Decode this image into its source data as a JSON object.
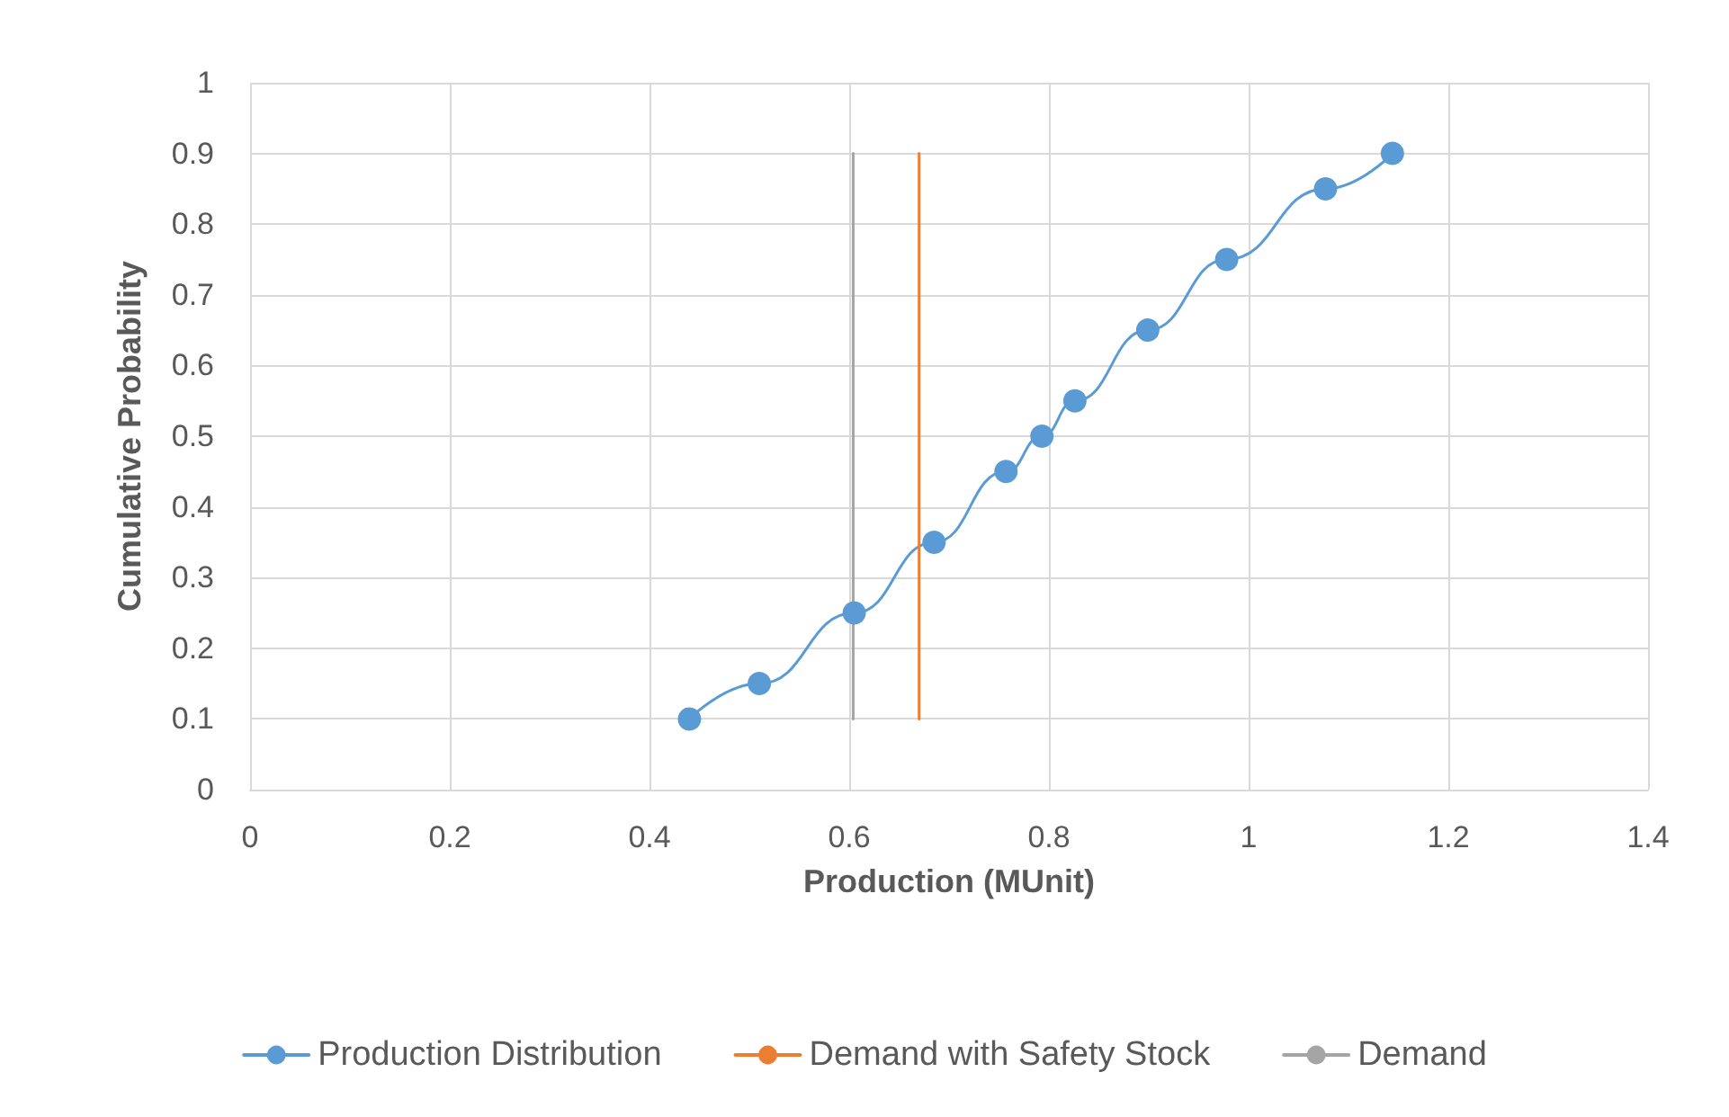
{
  "chart_data": {
    "type": "line",
    "xlabel": "Production (MUnit)",
    "ylabel": "Cumulative Probability",
    "series": [
      {
        "name": "Production Distribution",
        "color": "#5b9bd5",
        "marker": "circle",
        "x": [
          0.44,
          0.51,
          0.605,
          0.685,
          0.757,
          0.793,
          0.826,
          0.899,
          0.978,
          1.077,
          1.144
        ],
        "values": [
          0.1,
          0.15,
          0.25,
          0.35,
          0.45,
          0.5,
          0.55,
          0.65,
          0.75,
          0.85,
          0.9
        ]
      },
      {
        "name": "Demand with Safety Stock",
        "color": "#ed7d31",
        "marker": "none",
        "x": [
          0.67,
          0.67
        ],
        "values": [
          0.1,
          0.9
        ]
      },
      {
        "name": "Demand",
        "color": "#a5a5a5",
        "marker": "none",
        "x": [
          0.604,
          0.604
        ],
        "values": [
          0.1,
          0.9
        ]
      }
    ],
    "xlim": [
      0,
      1.4
    ],
    "xticks": [
      0,
      0.2,
      0.4,
      0.6,
      0.8,
      1,
      1.2,
      1.4
    ],
    "ylim": [
      0,
      1
    ],
    "yticks": [
      0,
      0.1,
      0.2,
      0.3,
      0.4,
      0.5,
      0.6,
      0.7,
      0.8,
      0.9,
      1
    ],
    "grid": true,
    "legend": "bottom",
    "line_style": "solid"
  }
}
